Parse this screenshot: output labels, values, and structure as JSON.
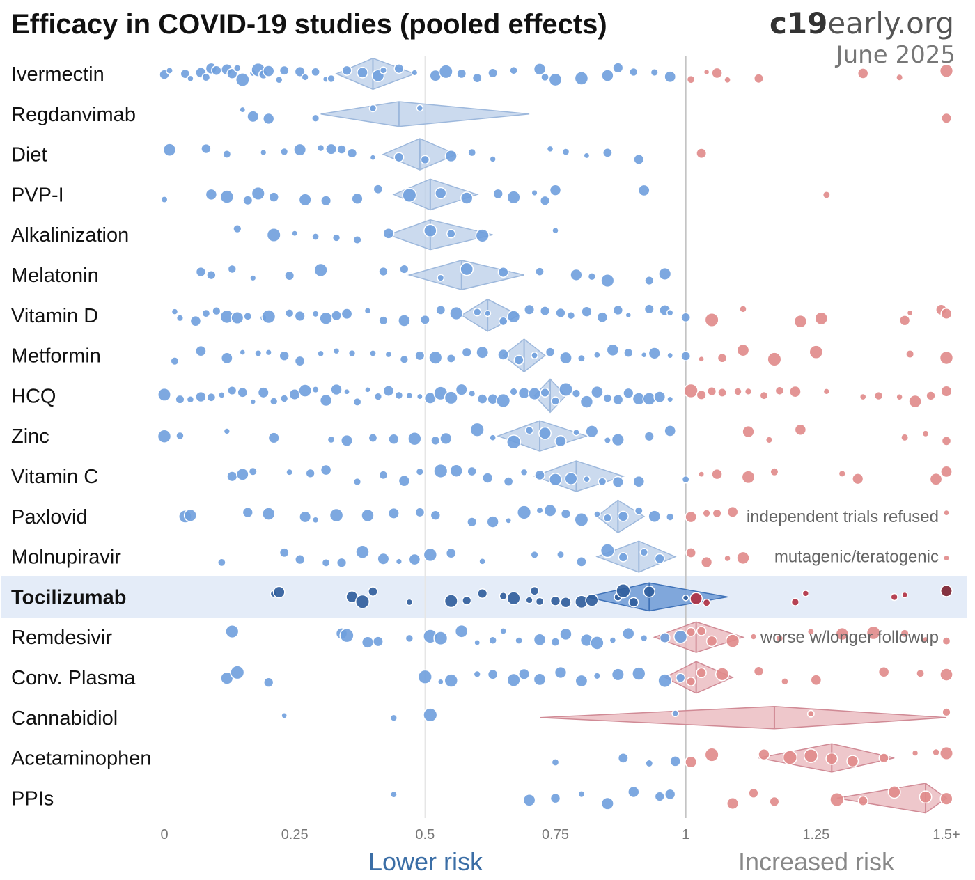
{
  "header": {
    "title": "Efficacy in COVID-19 studies (pooled effects)",
    "brand_bold": "c19",
    "brand_rest": "early.org",
    "date": "June 2025"
  },
  "footer": {
    "lower_label": "Lower risk",
    "higher_label": "Increased risk"
  },
  "colors": {
    "benefit": "#6f9fdd",
    "harm": "#e08a8a",
    "benefit_diamond": "#b9cde8",
    "harm_diamond": "#e8b4ba",
    "highlight_band": "#e4ecf8",
    "highlight_dot": "#2e5c9a"
  },
  "chart_data": {
    "type": "scatter",
    "title": "Efficacy in COVID-19 studies (pooled effects)",
    "x_ticks": [
      {
        "value": 0,
        "label": "0"
      },
      {
        "value": 0.25,
        "label": "0.25"
      },
      {
        "value": 0.5,
        "label": "0.5"
      },
      {
        "value": 0.75,
        "label": "0.75"
      },
      {
        "value": 1,
        "label": "1"
      },
      {
        "value": 1.25,
        "label": "1.25"
      },
      {
        "value": 1.5,
        "label": "1.5+"
      }
    ],
    "xlim": [
      0,
      1.5
    ],
    "reference_line": 1,
    "highlighted": "Tocilizumab",
    "rows": [
      {
        "name": "Ivermectin",
        "pooled": 0.4,
        "ci": [
          0.33,
          0.48
        ],
        "note": "",
        "studies": [
          0.0,
          0.01,
          0.04,
          0.05,
          0.07,
          0.08,
          0.09,
          0.1,
          0.12,
          0.13,
          0.14,
          0.15,
          0.17,
          0.18,
          0.19,
          0.2,
          0.22,
          0.23,
          0.26,
          0.27,
          0.29,
          0.31,
          0.32,
          0.35,
          0.38,
          0.41,
          0.42,
          0.45,
          0.48,
          0.52,
          0.54,
          0.57,
          0.6,
          0.63,
          0.67,
          0.72,
          0.73,
          0.75,
          0.8,
          0.85,
          0.87,
          0.9,
          0.94,
          0.97,
          1.01,
          1.04,
          1.06,
          1.08,
          1.14,
          1.34,
          1.41,
          1.5
        ]
      },
      {
        "name": "Regdanvimab",
        "pooled": 0.45,
        "ci": [
          0.3,
          0.7
        ],
        "note": "",
        "studies": [
          0.15,
          0.17,
          0.2,
          0.29,
          0.4,
          0.49,
          1.5
        ]
      },
      {
        "name": "Diet",
        "pooled": 0.49,
        "ci": [
          0.42,
          0.56
        ],
        "note": "",
        "studies": [
          0.01,
          0.08,
          0.12,
          0.19,
          0.23,
          0.26,
          0.3,
          0.32,
          0.34,
          0.36,
          0.4,
          0.45,
          0.5,
          0.55,
          0.59,
          0.63,
          0.74,
          0.77,
          0.81,
          0.85,
          0.91,
          1.03
        ]
      },
      {
        "name": "PVP-I",
        "pooled": 0.51,
        "ci": [
          0.44,
          0.6
        ],
        "note": "",
        "studies": [
          0.0,
          0.09,
          0.12,
          0.16,
          0.18,
          0.21,
          0.27,
          0.31,
          0.37,
          0.41,
          0.47,
          0.53,
          0.58,
          0.64,
          0.67,
          0.71,
          0.73,
          0.75,
          0.92,
          1.27
        ]
      },
      {
        "name": "Alkalinization",
        "pooled": 0.51,
        "ci": [
          0.43,
          0.63
        ],
        "note": "",
        "studies": [
          0.14,
          0.21,
          0.25,
          0.29,
          0.33,
          0.37,
          0.43,
          0.51,
          0.55,
          0.61,
          0.75
        ]
      },
      {
        "name": "Melatonin",
        "pooled": 0.57,
        "ci": [
          0.47,
          0.69
        ],
        "note": "",
        "studies": [
          0.07,
          0.09,
          0.13,
          0.17,
          0.24,
          0.3,
          0.42,
          0.46,
          0.53,
          0.58,
          0.65,
          0.72,
          0.79,
          0.82,
          0.85,
          0.93,
          0.96
        ]
      },
      {
        "name": "Vitamin D",
        "pooled": 0.62,
        "ci": [
          0.57,
          0.68
        ],
        "note": "",
        "studies": [
          0.02,
          0.03,
          0.06,
          0.08,
          0.1,
          0.12,
          0.14,
          0.16,
          0.19,
          0.2,
          0.24,
          0.26,
          0.29,
          0.31,
          0.33,
          0.35,
          0.39,
          0.42,
          0.46,
          0.5,
          0.53,
          0.56,
          0.6,
          0.62,
          0.65,
          0.67,
          0.7,
          0.73,
          0.76,
          0.78,
          0.81,
          0.84,
          0.87,
          0.89,
          0.93,
          0.96,
          0.97,
          1.0,
          1.05,
          1.11,
          1.22,
          1.26,
          1.42,
          1.43,
          1.49,
          1.5
        ]
      },
      {
        "name": "Metformin",
        "pooled": 0.69,
        "ci": [
          0.65,
          0.73
        ],
        "note": "",
        "studies": [
          0.02,
          0.07,
          0.12,
          0.15,
          0.18,
          0.2,
          0.23,
          0.26,
          0.3,
          0.33,
          0.36,
          0.4,
          0.43,
          0.46,
          0.49,
          0.52,
          0.55,
          0.58,
          0.61,
          0.65,
          0.68,
          0.71,
          0.74,
          0.77,
          0.8,
          0.83,
          0.86,
          0.89,
          0.92,
          0.94,
          0.97,
          1.0,
          1.03,
          1.07,
          1.11,
          1.17,
          1.25,
          1.43,
          1.5
        ]
      },
      {
        "name": "HCQ",
        "pooled": 0.74,
        "ci": [
          0.71,
          0.77
        ],
        "note": "",
        "studies": [
          0.0,
          0.03,
          0.05,
          0.07,
          0.09,
          0.11,
          0.13,
          0.15,
          0.17,
          0.19,
          0.21,
          0.23,
          0.25,
          0.27,
          0.29,
          0.31,
          0.33,
          0.35,
          0.37,
          0.39,
          0.41,
          0.43,
          0.45,
          0.47,
          0.49,
          0.51,
          0.53,
          0.55,
          0.57,
          0.59,
          0.61,
          0.63,
          0.65,
          0.67,
          0.69,
          0.71,
          0.73,
          0.75,
          0.77,
          0.79,
          0.81,
          0.83,
          0.85,
          0.87,
          0.89,
          0.91,
          0.93,
          0.95,
          0.97,
          1.01,
          1.03,
          1.05,
          1.07,
          1.1,
          1.12,
          1.15,
          1.18,
          1.21,
          1.27,
          1.34,
          1.37,
          1.41,
          1.44,
          1.47,
          1.5
        ]
      },
      {
        "name": "Zinc",
        "pooled": 0.72,
        "ci": [
          0.64,
          0.81
        ],
        "note": "",
        "studies": [
          0.0,
          0.03,
          0.12,
          0.21,
          0.32,
          0.35,
          0.4,
          0.44,
          0.48,
          0.52,
          0.54,
          0.6,
          0.63,
          0.67,
          0.7,
          0.73,
          0.76,
          0.79,
          0.82,
          0.85,
          0.87,
          0.93,
          0.97,
          1.12,
          1.16,
          1.22,
          1.42,
          1.46,
          1.5
        ]
      },
      {
        "name": "Vitamin C",
        "pooled": 0.79,
        "ci": [
          0.71,
          0.88
        ],
        "note": "",
        "studies": [
          0.13,
          0.15,
          0.17,
          0.24,
          0.28,
          0.31,
          0.37,
          0.42,
          0.46,
          0.49,
          0.53,
          0.56,
          0.59,
          0.62,
          0.66,
          0.69,
          0.72,
          0.75,
          0.78,
          0.81,
          0.84,
          0.87,
          0.91,
          1.0,
          1.03,
          1.06,
          1.12,
          1.17,
          1.3,
          1.33,
          1.48,
          1.5
        ]
      },
      {
        "name": "Paxlovid",
        "pooled": 0.87,
        "ci": [
          0.83,
          0.92
        ],
        "note": "independent trials refused",
        "studies": [
          0.04,
          0.05,
          0.16,
          0.2,
          0.27,
          0.29,
          0.33,
          0.39,
          0.44,
          0.49,
          0.52,
          0.59,
          0.63,
          0.66,
          0.69,
          0.72,
          0.74,
          0.77,
          0.8,
          0.83,
          0.85,
          0.88,
          0.91,
          0.94,
          0.97,
          1.01,
          1.04,
          1.06,
          1.09,
          1.5
        ]
      },
      {
        "name": "Molnupiravir",
        "pooled": 0.91,
        "ci": [
          0.83,
          0.98
        ],
        "note": "mutagenic/teratogenic",
        "studies": [
          0.11,
          0.23,
          0.26,
          0.31,
          0.34,
          0.38,
          0.42,
          0.45,
          0.48,
          0.51,
          0.55,
          0.61,
          0.71,
          0.76,
          0.8,
          0.85,
          0.88,
          0.92,
          0.95,
          1.01,
          1.04,
          1.08,
          1.11,
          1.5
        ]
      },
      {
        "name": "Tocilizumab",
        "pooled": 0.93,
        "ci": [
          0.81,
          1.08
        ],
        "note": "",
        "studies": [
          0.21,
          0.22,
          0.36,
          0.38,
          0.4,
          0.47,
          0.55,
          0.58,
          0.61,
          0.65,
          0.67,
          0.7,
          0.71,
          0.72,
          0.75,
          0.77,
          0.8,
          0.82,
          0.87,
          0.88,
          0.9,
          0.93,
          1.0,
          1.02,
          1.04,
          1.21,
          1.23,
          1.4,
          1.42,
          1.5
        ]
      },
      {
        "name": "Remdesivir",
        "pooled": 1.02,
        "ci": [
          0.94,
          1.11
        ],
        "note": "worse w/longer followup",
        "studies": [
          0.13,
          0.34,
          0.35,
          0.39,
          0.41,
          0.47,
          0.51,
          0.53,
          0.57,
          0.6,
          0.63,
          0.65,
          0.68,
          0.72,
          0.75,
          0.77,
          0.81,
          0.83,
          0.86,
          0.89,
          0.92,
          0.96,
          0.99,
          1.01,
          1.03,
          1.05,
          1.09,
          1.13,
          1.18,
          1.24,
          1.3,
          1.36,
          1.42,
          1.46,
          1.5
        ]
      },
      {
        "name": "Conv. Plasma",
        "pooled": 1.02,
        "ci": [
          0.96,
          1.09
        ],
        "note": "",
        "studies": [
          0.12,
          0.14,
          0.2,
          0.5,
          0.53,
          0.55,
          0.6,
          0.63,
          0.67,
          0.69,
          0.72,
          0.76,
          0.8,
          0.83,
          0.87,
          0.91,
          0.96,
          0.99,
          1.01,
          1.03,
          1.07,
          1.14,
          1.19,
          1.25,
          1.38,
          1.45,
          1.5
        ]
      },
      {
        "name": "Cannabidiol",
        "pooled": 1.17,
        "ci": [
          0.72,
          1.5
        ],
        "note": "",
        "studies": [
          0.23,
          0.44,
          0.51,
          0.98,
          1.24,
          1.5
        ]
      },
      {
        "name": "Acetaminophen",
        "pooled": 1.28,
        "ci": [
          1.14,
          1.4
        ],
        "note": "",
        "studies": [
          0.75,
          0.88,
          0.93,
          0.98,
          1.01,
          1.05,
          1.15,
          1.2,
          1.24,
          1.28,
          1.32,
          1.38,
          1.44,
          1.48,
          1.5
        ]
      },
      {
        "name": "PPIs",
        "pooled": 1.46,
        "ci": [
          1.29,
          1.5
        ],
        "note": "",
        "studies": [
          0.44,
          0.7,
          0.75,
          0.8,
          0.85,
          0.9,
          0.95,
          0.97,
          1.09,
          1.13,
          1.17,
          1.29,
          1.34,
          1.4,
          1.46,
          1.5
        ]
      }
    ]
  }
}
